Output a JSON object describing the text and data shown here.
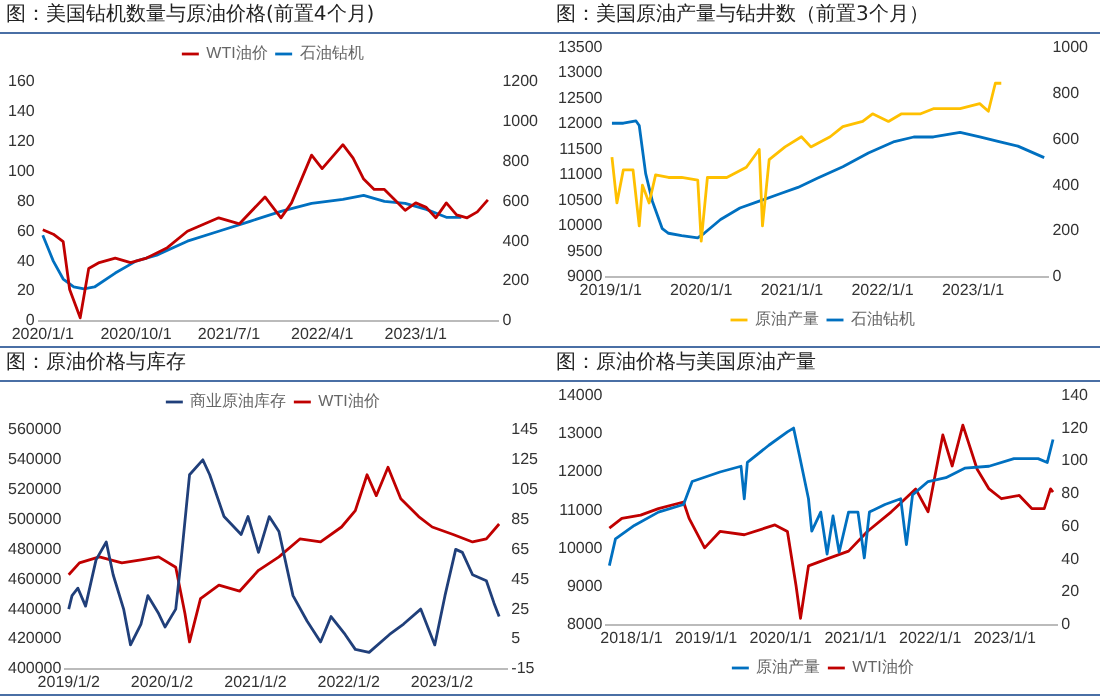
{
  "chart_data": [
    {
      "type": "line",
      "title": "图：美国钻机数量与原油价格(前置4个月)",
      "legend": "top",
      "xlim": [
        "2019-12-20",
        "2023-09-01"
      ],
      "xticks": [
        {
          "value": "2020-01-01",
          "label": "2020/1/1"
        },
        {
          "value": "2020-10-01",
          "label": "2020/10/1"
        },
        {
          "value": "2021-07-01",
          "label": "2021/7/1"
        },
        {
          "value": "2022-04-01",
          "label": "2022/4/1"
        },
        {
          "value": "2023-01-01",
          "label": "2023/1/1"
        }
      ],
      "ylim": [
        0,
        160
      ],
      "yticks": [
        0,
        20,
        40,
        60,
        80,
        100,
        120,
        140,
        160
      ],
      "y2lim": [
        0,
        1200
      ],
      "y2ticks": [
        0,
        200,
        400,
        600,
        800,
        1000,
        1200
      ],
      "series": [
        {
          "name": "WTI油价",
          "color": "#c00000",
          "x": [
            "2020-01-01",
            "2020-02-01",
            "2020-03-01",
            "2020-03-20",
            "2020-04-20",
            "2020-05-15",
            "2020-06-15",
            "2020-08-01",
            "2020-09-15",
            "2020-11-01",
            "2021-01-01",
            "2021-03-01",
            "2021-06-01",
            "2021-08-01",
            "2021-10-15",
            "2021-12-01",
            "2022-01-01",
            "2022-03-01",
            "2022-04-01",
            "2022-06-01",
            "2022-07-01",
            "2022-08-01",
            "2022-09-01",
            "2022-10-01",
            "2022-11-01",
            "2022-12-01",
            "2023-01-01",
            "2023-02-01",
            "2023-03-01",
            "2023-04-01",
            "2023-05-01",
            "2023-06-01",
            "2023-07-01",
            "2023-08-01"
          ],
          "values": [
            61,
            58,
            53,
            21,
            2,
            35,
            39,
            42,
            39,
            42,
            49,
            60,
            69,
            65,
            83,
            69,
            79,
            111,
            102,
            118,
            109,
            95,
            88,
            88,
            81,
            74,
            79,
            76,
            69,
            79,
            71,
            69,
            73,
            81
          ]
        },
        {
          "name": "石油钻机",
          "color": "#0070c0",
          "axis": "y2",
          "x": [
            "2020-01-01",
            "2020-02-01",
            "2020-03-01",
            "2020-04-01",
            "2020-05-01",
            "2020-06-01",
            "2020-08-01",
            "2020-10-01",
            "2020-12-01",
            "2021-03-01",
            "2021-06-01",
            "2021-09-01",
            "2021-12-01",
            "2022-03-01",
            "2022-06-01",
            "2022-08-01",
            "2022-10-01",
            "2022-12-01",
            "2023-02-01",
            "2023-04-01",
            "2023-05-15"
          ],
          "values": [
            430,
            300,
            210,
            170,
            160,
            170,
            240,
            300,
            330,
            400,
            450,
            500,
            550,
            590,
            610,
            630,
            600,
            590,
            560,
            520,
            520
          ]
        }
      ]
    },
    {
      "type": "line",
      "title": "图：美国原油产量与钻井数（前置3个月）",
      "legend": "bottom",
      "xlim": [
        "2018-12-15",
        "2023-11-01"
      ],
      "xticks": [
        {
          "value": "2019-01-01",
          "label": "2019/1/1"
        },
        {
          "value": "2020-01-01",
          "label": "2020/1/1"
        },
        {
          "value": "2021-01-01",
          "label": "2021/1/1"
        },
        {
          "value": "2022-01-01",
          "label": "2022/1/1"
        },
        {
          "value": "2023-01-01",
          "label": "2023/1/1"
        }
      ],
      "ylim": [
        9000,
        13500
      ],
      "yticks": [
        9000,
        9500,
        10000,
        10500,
        11000,
        11500,
        12000,
        12500,
        13000,
        13500
      ],
      "y2lim": [
        0,
        1000
      ],
      "y2ticks": [
        0,
        200,
        400,
        600,
        800,
        1000
      ],
      "series": [
        {
          "name": "原油产量",
          "color": "#ffc000",
          "x": [
            "2019-01-06",
            "2019-01-26",
            "2019-02-21",
            "2019-04-01",
            "2019-04-26",
            "2019-05-09",
            "2019-06-05",
            "2019-07-01",
            "2019-08-22",
            "2019-10-14",
            "2019-12-18",
            "2020-01-01",
            "2020-01-26",
            "2020-04-13",
            "2020-07-01",
            "2020-08-22",
            "2020-09-04",
            "2020-10-01",
            "2020-12-04",
            "2021-02-08",
            "2021-03-18",
            "2021-06-04",
            "2021-07-25",
            "2021-10-13",
            "2021-11-22",
            "2022-01-25",
            "2022-03-19",
            "2022-06-04",
            "2022-07-25",
            "2022-11-10",
            "2023-01-28",
            "2023-03-04",
            "2023-04-01",
            "2023-04-25"
          ],
          "values": [
            11350,
            10450,
            11100,
            11100,
            10000,
            10800,
            10450,
            11000,
            10950,
            10950,
            10900,
            9700,
            10950,
            10950,
            11150,
            11500,
            10000,
            11300,
            11550,
            11750,
            11550,
            11750,
            11950,
            12050,
            12200,
            12050,
            12200,
            12200,
            12300,
            12300,
            12400,
            12250,
            12800,
            12800
          ]
        },
        {
          "name": "石油钻机",
          "color": "#0070c0",
          "axis": "y2",
          "x": [
            "2019-01-06",
            "2019-02-21",
            "2019-04-13",
            "2019-04-26",
            "2019-05-22",
            "2019-06-18",
            "2019-07-28",
            "2019-08-22",
            "2019-10-14",
            "2019-12-18",
            "2020-01-13",
            "2020-03-19",
            "2020-06-05",
            "2020-08-22",
            "2020-11-08",
            "2021-01-25",
            "2021-04-13",
            "2021-07-25",
            "2021-11-05",
            "2022-02-18",
            "2022-05-07",
            "2022-07-25",
            "2022-11-10",
            "2023-01-28",
            "2023-04-16",
            "2023-07-01",
            "2023-10-15"
          ],
          "values": [
            670,
            670,
            680,
            660,
            450,
            330,
            210,
            190,
            180,
            170,
            190,
            250,
            300,
            330,
            360,
            390,
            430,
            480,
            540,
            590,
            610,
            610,
            630,
            610,
            590,
            570,
            520
          ]
        }
      ]
    },
    {
      "type": "line",
      "title": "图：原油价格与库存",
      "legend": "top",
      "xlim": [
        "2018-12-20",
        "2023-09-15"
      ],
      "xticks": [
        {
          "value": "2019-01-02",
          "label": "2019/1/2"
        },
        {
          "value": "2020-01-02",
          "label": "2020/1/2"
        },
        {
          "value": "2021-01-02",
          "label": "2021/1/2"
        },
        {
          "value": "2022-01-02",
          "label": "2022/1/2"
        },
        {
          "value": "2023-01-02",
          "label": "2023/1/2"
        }
      ],
      "ylim": [
        400000,
        560000
      ],
      "yticks": [
        400000,
        420000,
        440000,
        460000,
        480000,
        500000,
        520000,
        540000,
        560000
      ],
      "y2lim": [
        -15,
        145
      ],
      "y2ticks": [
        -15,
        5,
        25,
        45,
        65,
        85,
        105,
        125,
        145
      ],
      "series": [
        {
          "name": "商业原油库存",
          "color": "#203f7a",
          "x": [
            "2019-01-02",
            "2019-01-15",
            "2019-02-07",
            "2019-03-09",
            "2019-04-19",
            "2019-05-29",
            "2019-06-25",
            "2019-08-05",
            "2019-09-01",
            "2019-10-12",
            "2019-11-08",
            "2019-12-20",
            "2020-01-14",
            "2020-02-25",
            "2020-03-17",
            "2020-04-19",
            "2020-06-10",
            "2020-07-07",
            "2020-09-01",
            "2020-11-07",
            "2020-12-04",
            "2021-01-14",
            "2021-02-25",
            "2021-04-04",
            "2021-05-29",
            "2021-07-23",
            "2021-09-14",
            "2021-10-25",
            "2021-12-19",
            "2022-01-28",
            "2022-03-23",
            "2022-06-11",
            "2022-08-05",
            "2022-10-11",
            "2022-12-05",
            "2023-01-14",
            "2023-02-25",
            "2023-03-23",
            "2023-05-02",
            "2023-06-25",
            "2023-07-25",
            "2023-08-14"
          ],
          "values": [
            440000,
            449000,
            454000,
            442000,
            473000,
            485000,
            463000,
            440000,
            416000,
            430000,
            449000,
            437000,
            428000,
            440000,
            473000,
            530000,
            540000,
            530000,
            502000,
            490000,
            502000,
            478000,
            502000,
            492000,
            449000,
            432000,
            418000,
            435000,
            423000,
            413000,
            411000,
            423000,
            430000,
            440000,
            416000,
            449000,
            480000,
            478000,
            463000,
            459000,
            444000,
            435000
          ]
        },
        {
          "name": "WTI油价",
          "color": "#c00000",
          "axis": "y2",
          "x": [
            "2019-01-02",
            "2019-02-13",
            "2019-05-02",
            "2019-07-29",
            "2019-10-12",
            "2019-12-20",
            "2020-02-25",
            "2020-04-01",
            "2020-04-19",
            "2020-06-01",
            "2020-08-12",
            "2020-11-01",
            "2021-01-14",
            "2021-04-04",
            "2021-06-25",
            "2021-09-14",
            "2021-12-05",
            "2022-01-28",
            "2022-03-15",
            "2022-04-20",
            "2022-06-05",
            "2022-07-25",
            "2022-10-03",
            "2022-11-25",
            "2023-02-15",
            "2023-05-02",
            "2023-06-25",
            "2023-08-14"
          ],
          "values": [
            48,
            56,
            60,
            56,
            58,
            60,
            53,
            22,
            3,
            32,
            41,
            37,
            51,
            60,
            72,
            70,
            80,
            91,
            115,
            101,
            120,
            99,
            87,
            80,
            75,
            70,
            72,
            82
          ]
        }
      ]
    },
    {
      "type": "line",
      "title": "图：原油价格与美国原油产量",
      "legend": "bottom",
      "xlim": [
        "2017-09-01",
        "2023-09-15"
      ],
      "xticks": [
        {
          "value": "2018-01-01",
          "label": "2018/1/1"
        },
        {
          "value": "2019-01-01",
          "label": "2019/1/1"
        },
        {
          "value": "2020-01-01",
          "label": "2020/1/1"
        },
        {
          "value": "2021-01-01",
          "label": "2021/1/1"
        },
        {
          "value": "2022-01-01",
          "label": "2022/1/1"
        },
        {
          "value": "2023-01-01",
          "label": "2023/1/1"
        }
      ],
      "ylim": [
        8000,
        14000
      ],
      "yticks": [
        8000,
        9000,
        10000,
        11000,
        12000,
        13000,
        14000
      ],
      "y2lim": [
        0,
        140
      ],
      "y2ticks": [
        0,
        20,
        40,
        60,
        80,
        100,
        120,
        140
      ],
      "series": [
        {
          "name": "原油产量",
          "color": "#0070c0",
          "x": [
            "2017-09-15",
            "2017-10-15",
            "2018-01-15",
            "2018-05-13",
            "2018-09-13",
            "2018-10-25",
            "2019-03-10",
            "2019-06-21",
            "2019-07-07",
            "2019-07-22",
            "2019-11-04",
            "2020-02-03",
            "2020-03-04",
            "2020-04-01",
            "2020-05-16",
            "2020-06-01",
            "2020-07-15",
            "2020-08-15",
            "2020-09-13",
            "2020-10-13",
            "2020-11-28",
            "2021-01-13",
            "2021-02-13",
            "2021-03-10",
            "2021-05-25",
            "2021-08-10",
            "2021-09-07",
            "2021-10-07",
            "2021-12-22",
            "2022-03-19",
            "2022-06-19",
            "2022-10-16",
            "2023-02-15",
            "2023-06-13",
            "2023-07-28",
            "2023-08-25"
          ],
          "values": [
            9550,
            10250,
            10600,
            10950,
            11150,
            11750,
            12000,
            12150,
            11300,
            12250,
            12700,
            13050,
            13150,
            12450,
            11300,
            10450,
            10950,
            9850,
            10850,
            9900,
            10950,
            10950,
            9750,
            10950,
            11150,
            11300,
            10100,
            11400,
            11750,
            11850,
            12100,
            12150,
            12350,
            12350,
            12250,
            12850
          ]
        },
        {
          "name": "WTI油价",
          "color": "#c00000",
          "axis": "y2",
          "x": [
            "2017-09-15",
            "2017-11-15",
            "2018-02-15",
            "2018-05-13",
            "2018-09-13",
            "2018-10-10",
            "2018-12-25",
            "2019-03-10",
            "2019-07-07",
            "2019-12-04",
            "2020-02-03",
            "2020-03-16",
            "2020-04-07",
            "2020-05-16",
            "2020-09-01",
            "2020-11-28",
            "2021-02-28",
            "2021-06-25",
            "2021-10-22",
            "2021-12-22",
            "2022-03-04",
            "2022-04-19",
            "2022-06-10",
            "2022-08-19",
            "2022-10-16",
            "2022-12-16",
            "2023-03-13",
            "2023-05-13",
            "2023-07-13",
            "2023-08-13",
            "2023-08-25"
          ],
          "values": [
            59,
            65,
            67,
            71,
            75,
            65,
            47,
            57,
            55,
            61,
            57,
            24,
            4,
            36,
            41,
            45,
            57,
            69,
            83,
            69,
            116,
            97,
            122,
            95,
            83,
            77,
            79,
            71,
            71,
            83,
            81
          ]
        }
      ]
    }
  ]
}
